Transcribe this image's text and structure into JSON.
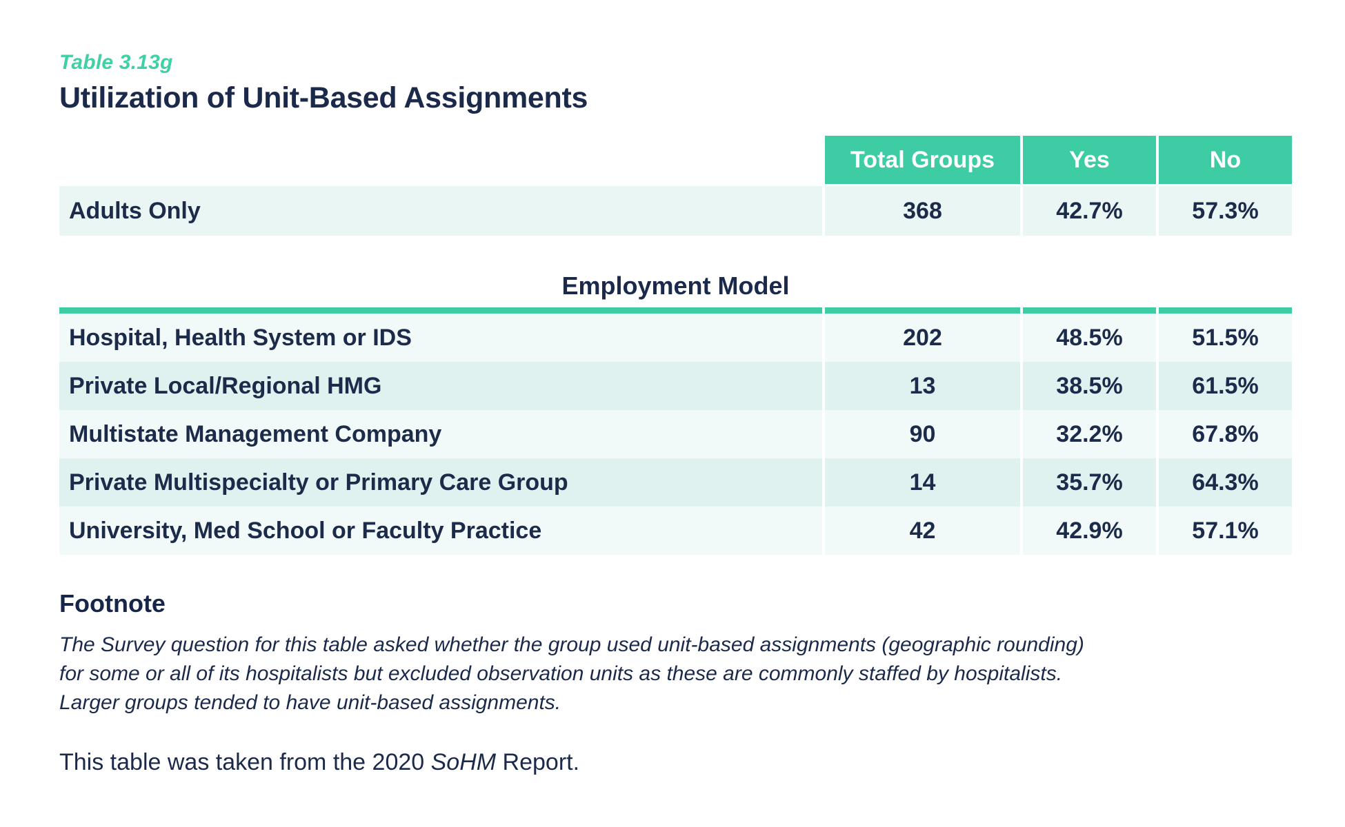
{
  "header": {
    "table_label": "Table 3.13g",
    "title": "Utilization of Unit-Based Assignments"
  },
  "table": {
    "columns": [
      "Total Groups",
      "Yes",
      "No"
    ],
    "adults_row": {
      "label": "Adults Only",
      "total": "368",
      "yes": "42.7%",
      "no": "57.3%"
    },
    "section_header": "Employment Model",
    "rows": [
      {
        "label": "Hospital, Health System or IDS",
        "total": "202",
        "yes": "48.5%",
        "no": "51.5%"
      },
      {
        "label": "Private Local/Regional HMG",
        "total": "13",
        "yes": "38.5%",
        "no": "61.5%"
      },
      {
        "label": "Multistate Management Company",
        "total": "90",
        "yes": "32.2%",
        "no": "67.8%"
      },
      {
        "label": "Private Multispecialty or Primary Care Group",
        "total": "14",
        "yes": "35.7%",
        "no": "64.3%"
      },
      {
        "label": "University, Med School or Faculty Practice",
        "total": "42",
        "yes": "42.9%",
        "no": "57.1%"
      }
    ]
  },
  "footnote": {
    "heading": "Footnote",
    "lines": [
      "The Survey question for this table asked whether the group used unit-based assignments (geographic rounding)",
      "for some or all of its hospitalists but excluded observation units as these are commonly staffed by hospitalists.",
      "Larger groups tended to have unit-based assignments."
    ],
    "body": "The Survey question for this table asked whether the group used unit-based assignments (geographic rounding) for some or all of its hospitalists but excluded observation units as these are commonly staffed by hospitalists. Larger groups tended to have unit-based assignments."
  },
  "source": {
    "prefix": "This table was taken from the 2020 ",
    "report_name": "SoHM",
    "suffix": " Report."
  },
  "colors": {
    "accent_teal": "#3ecca4",
    "accent_teal_text": "#3fd0a6",
    "navy_text": "#1b2a4b",
    "row_adults_bg": "#e9f6f3",
    "row_stripe_light": "#f1faf8",
    "row_stripe_dark": "#dff2ef",
    "header_text": "#ffffff",
    "page_bg": "#ffffff"
  }
}
